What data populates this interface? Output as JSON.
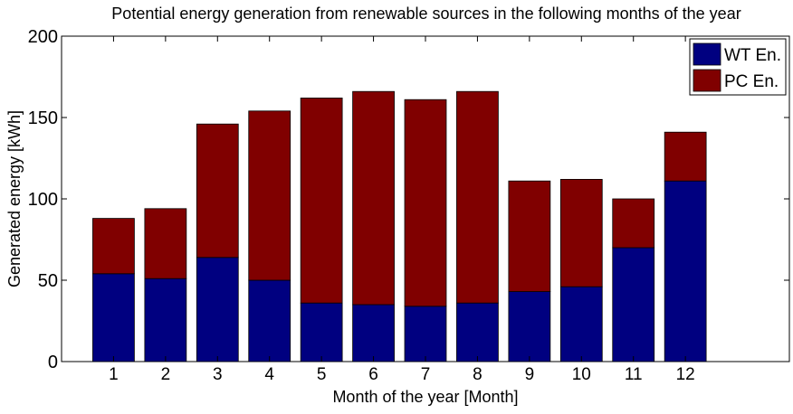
{
  "chart_data": {
    "type": "bar",
    "stacked": true,
    "title": "Potential energy generation from renewable sources in the following months of the year",
    "xlabel": "Month of the year [Month]",
    "ylabel": "Generated energy [kWh]",
    "categories": [
      "1",
      "2",
      "3",
      "4",
      "5",
      "6",
      "7",
      "8",
      "9",
      "10",
      "11",
      "12"
    ],
    "xlim": [
      0,
      14
    ],
    "ylim": [
      0,
      200
    ],
    "yticks": [
      0,
      50,
      100,
      150,
      200
    ],
    "grid": false,
    "legend_position": "top-right",
    "series": [
      {
        "name": "WT En.",
        "color": "#000080",
        "values": [
          54,
          51,
          64,
          50,
          36,
          35,
          34,
          36,
          43,
          46,
          70,
          111
        ]
      },
      {
        "name": "PC En.",
        "color": "#800000",
        "values": [
          34,
          43,
          82,
          104,
          126,
          131,
          127,
          130,
          68,
          66,
          30,
          30
        ]
      }
    ]
  }
}
